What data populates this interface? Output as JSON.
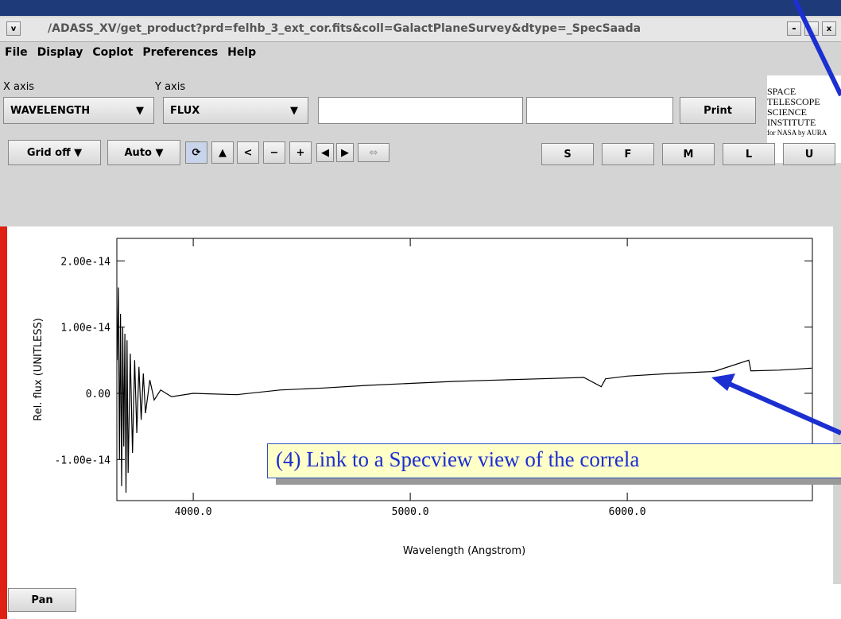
{
  "window": {
    "title": "/ADASS_XV/get_product?prd=felhb_3_ext_cor.fits&coll=GalactPlaneSurvey&dtype=_SpecSaada",
    "menu": [
      "File",
      "Display",
      "Coplot",
      "Preferences",
      "Help"
    ]
  },
  "controls": {
    "x_axis_label": "X axis",
    "y_axis_label": "Y axis",
    "x_axis_value": "WAVELENGTH",
    "y_axis_value": "FLUX",
    "print": "Print",
    "grid": "Grid off",
    "auto": "Auto",
    "buttons": [
      "S",
      "F",
      "M",
      "L",
      "U"
    ],
    "pan": "Pan"
  },
  "logo": [
    "SPACE",
    "TELESCOPE",
    "SCIENCE",
    "INSTITUTE",
    "for NASA by AURA"
  ],
  "annotation": "(4) Link to a Specview view of the correla",
  "chart_data": {
    "type": "line",
    "xlabel": "Wavelength (Angstrom)",
    "ylabel": "Rel. flux (UNITLESS)",
    "x": [
      3650,
      3655,
      3660,
      3665,
      3670,
      3675,
      3680,
      3685,
      3690,
      3695,
      3700,
      3710,
      3720,
      3730,
      3740,
      3750,
      3760,
      3770,
      3780,
      3800,
      3820,
      3850,
      3900,
      4000,
      4200,
      4400,
      4600,
      4800,
      5000,
      5200,
      5400,
      5600,
      5800,
      5880,
      5900,
      6000,
      6200,
      6400,
      6560,
      6570,
      6700,
      6850
    ],
    "values": [
      5e-15,
      1.6e-14,
      -1e-14,
      1.2e-14,
      -1.4e-14,
      1e-14,
      -8e-15,
      9e-15,
      -1.5e-14,
      8e-15,
      -1.2e-14,
      6e-15,
      -9e-15,
      5e-15,
      -6e-15,
      4e-15,
      -4e-15,
      3e-15,
      -3e-15,
      2e-15,
      -1e-15,
      5e-16,
      -5e-16,
      0,
      -2e-16,
      5e-16,
      8e-16,
      1.2e-15,
      1.5e-15,
      1.8e-15,
      2e-15,
      2.2e-15,
      2.4e-15,
      1e-15,
      2.2e-15,
      2.6e-15,
      3e-15,
      3.3e-15,
      5e-15,
      3.4e-15,
      3.5e-15,
      3.8e-15
    ],
    "color": "#000000",
    "xlim": [
      3648,
      6853
    ],
    "ylim": [
      -1.62e-14,
      2.34e-14
    ],
    "xticks": [
      {
        "value": 4000,
        "label": "4000.0"
      },
      {
        "value": 5000,
        "label": "5000.0"
      },
      {
        "value": 6000,
        "label": "6000.0"
      }
    ],
    "yticks": [
      {
        "value": -1e-14,
        "label": "-1.00e-14"
      },
      {
        "value": 0,
        "label": "0.00"
      },
      {
        "value": 1e-14,
        "label": "1.00e-14"
      },
      {
        "value": 2e-14,
        "label": "2.00e-14"
      }
    ],
    "grid": false
  }
}
